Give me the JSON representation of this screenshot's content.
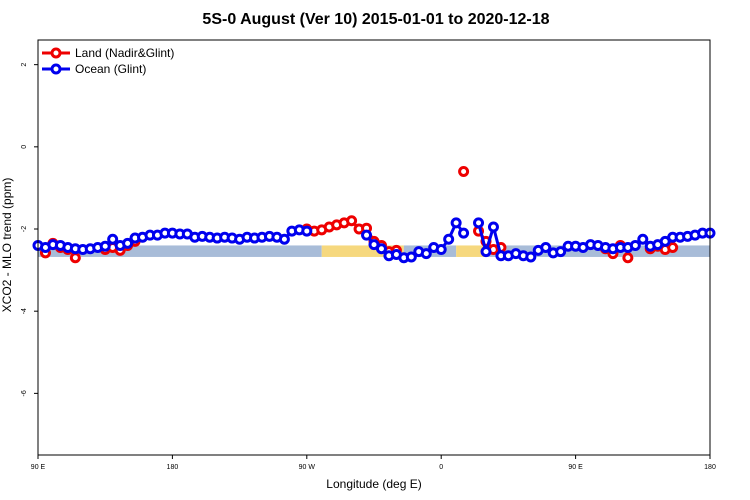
{
  "chart_data": {
    "type": "line",
    "title": "5S-0 August (Ver 10)   2015-01-01 to 2020-12-18",
    "xlabel": "Longitude (deg E)",
    "ylabel": "XCO2 - MLO trend (ppm)",
    "x_axis": {
      "note": "x values are degrees east of the axis start at 90 E (0 = 90 E, 90 = 180, 180 = 90 W, 270 = 0, 360 = 90 E, 450 = 180)",
      "range": [
        0,
        450
      ],
      "ticks": [
        {
          "x": 0,
          "label": "90 E"
        },
        {
          "x": 90,
          "label": "180"
        },
        {
          "x": 180,
          "label": "90 W"
        },
        {
          "x": 270,
          "label": "0"
        },
        {
          "x": 360,
          "label": "90 E"
        },
        {
          "x": 450,
          "label": "180"
        }
      ]
    },
    "y_axis": {
      "range": [
        -7.5,
        2.6
      ],
      "ticks": [
        {
          "y": 2,
          "label": "2"
        },
        {
          "y": 0,
          "label": "0"
        },
        {
          "y": -2,
          "label": "-2"
        },
        {
          "y": -4,
          "label": "-4"
        },
        {
          "y": -6,
          "label": "-6"
        }
      ]
    },
    "grid": false,
    "legend_position": "top-left",
    "surface_band": {
      "y_range": [
        -2.68,
        -2.4
      ],
      "segments": [
        {
          "from": 0,
          "to": 190,
          "kind": "ocean",
          "color": "#a8bcd8"
        },
        {
          "from": 190,
          "to": 245,
          "kind": "land",
          "color": "#f6d87e"
        },
        {
          "from": 245,
          "to": 280,
          "kind": "ocean",
          "color": "#a8bcd8"
        },
        {
          "from": 280,
          "to": 300,
          "kind": "land",
          "color": "#f6d87e"
        },
        {
          "from": 300,
          "to": 450,
          "kind": "ocean",
          "color": "#a8bcd8"
        }
      ]
    },
    "series": [
      {
        "name": "Land (Nadir&Glint)",
        "color": "#ee0000",
        "segments": [
          [
            [
              5,
              -2.58
            ],
            [
              10,
              -2.35
            ],
            [
              15,
              -2.45
            ],
            [
              20,
              -2.5
            ]
          ],
          [
            [
              45,
              -2.5
            ],
            [
              50,
              -2.45
            ],
            [
              55,
              -2.52
            ],
            [
              60,
              -2.4
            ],
            [
              65,
              -2.3
            ]
          ],
          [
            [
              180,
              -2.0
            ],
            [
              185,
              -2.05
            ],
            [
              190,
              -2.02
            ],
            [
              195,
              -1.95
            ],
            [
              200,
              -1.9
            ],
            [
              205,
              -1.85
            ],
            [
              210,
              -1.8
            ],
            [
              215,
              -2.0
            ],
            [
              220,
              -1.98
            ],
            [
              225,
              -2.3
            ],
            [
              230,
              -2.4
            ],
            [
              235,
              -2.55
            ],
            [
              240,
              -2.52
            ]
          ],
          [
            [
              285,
              -0.6
            ]
          ],
          [
            [
              295,
              -2.05
            ],
            [
              300,
              -2.3
            ],
            [
              305,
              -2.5
            ],
            [
              310,
              -2.45
            ]
          ],
          [
            [
              385,
              -2.55
            ],
            [
              390,
              -2.4
            ]
          ],
          [
            [
              410,
              -2.48
            ],
            [
              415,
              -2.42
            ],
            [
              420,
              -2.5
            ],
            [
              425,
              -2.45
            ]
          ]
        ],
        "isolated": [
          [
            25,
            -2.7
          ],
          [
            380,
            -2.48
          ],
          [
            385,
            -2.6
          ],
          [
            395,
            -2.7
          ]
        ]
      },
      {
        "name": "Ocean (Glint)",
        "color": "#0000ee",
        "segments": [
          [
            [
              0,
              -2.4
            ],
            [
              5,
              -2.45
            ],
            [
              10,
              -2.38
            ],
            [
              15,
              -2.4
            ],
            [
              20,
              -2.45
            ],
            [
              25,
              -2.48
            ],
            [
              30,
              -2.5
            ],
            [
              35,
              -2.48
            ],
            [
              40,
              -2.45
            ],
            [
              45,
              -2.42
            ],
            [
              50,
              -2.25
            ],
            [
              55,
              -2.4
            ],
            [
              60,
              -2.35
            ],
            [
              65,
              -2.22
            ],
            [
              70,
              -2.2
            ],
            [
              75,
              -2.15
            ],
            [
              80,
              -2.15
            ],
            [
              85,
              -2.1
            ],
            [
              90,
              -2.1
            ],
            [
              95,
              -2.12
            ],
            [
              100,
              -2.12
            ],
            [
              105,
              -2.2
            ],
            [
              110,
              -2.18
            ],
            [
              115,
              -2.2
            ],
            [
              120,
              -2.22
            ],
            [
              125,
              -2.2
            ],
            [
              130,
              -2.22
            ],
            [
              135,
              -2.25
            ],
            [
              140,
              -2.2
            ],
            [
              145,
              -2.22
            ],
            [
              150,
              -2.2
            ],
            [
              155,
              -2.18
            ],
            [
              160,
              -2.2
            ],
            [
              165,
              -2.25
            ],
            [
              170,
              -2.05
            ],
            [
              175,
              -2.02
            ],
            [
              180,
              -2.05
            ]
          ],
          [
            [
              220,
              -2.15
            ],
            [
              225,
              -2.38
            ],
            [
              230,
              -2.48
            ],
            [
              235,
              -2.65
            ],
            [
              240,
              -2.62
            ],
            [
              245,
              -2.7
            ],
            [
              250,
              -2.68
            ],
            [
              255,
              -2.55
            ],
            [
              260,
              -2.6
            ],
            [
              265,
              -2.45
            ],
            [
              270,
              -2.5
            ],
            [
              275,
              -2.25
            ],
            [
              280,
              -1.85
            ],
            [
              285,
              -2.1
            ]
          ],
          [
            [
              295,
              -1.85
            ],
            [
              300,
              -2.55
            ],
            [
              305,
              -1.95
            ],
            [
              310,
              -2.65
            ],
            [
              315,
              -2.65
            ],
            [
              320,
              -2.6
            ],
            [
              325,
              -2.65
            ],
            [
              330,
              -2.68
            ],
            [
              335,
              -2.52
            ],
            [
              340,
              -2.45
            ],
            [
              345,
              -2.58
            ],
            [
              350,
              -2.55
            ],
            [
              355,
              -2.42
            ],
            [
              360,
              -2.42
            ],
            [
              365,
              -2.45
            ],
            [
              370,
              -2.38
            ],
            [
              375,
              -2.4
            ],
            [
              380,
              -2.45
            ],
            [
              385,
              -2.48
            ],
            [
              390,
              -2.45
            ],
            [
              395,
              -2.45
            ],
            [
              400,
              -2.4
            ],
            [
              405,
              -2.25
            ],
            [
              410,
              -2.42
            ],
            [
              415,
              -2.38
            ],
            [
              420,
              -2.3
            ],
            [
              425,
              -2.2
            ],
            [
              430,
              -2.2
            ],
            [
              435,
              -2.18
            ],
            [
              440,
              -2.15
            ],
            [
              445,
              -2.1
            ],
            [
              450,
              -2.1
            ]
          ]
        ],
        "isolated": []
      }
    ]
  }
}
